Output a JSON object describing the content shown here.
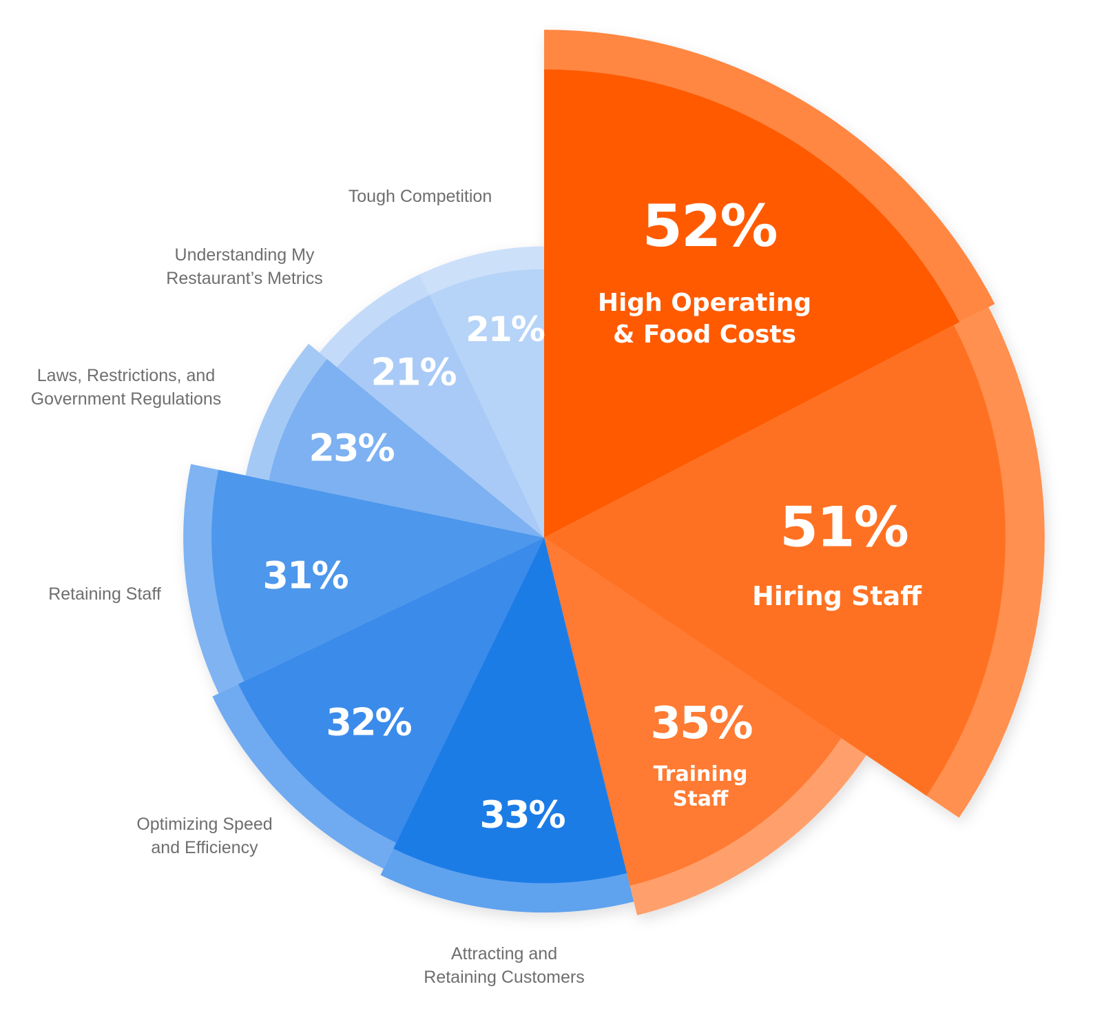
{
  "chart_data": {
    "type": "polar-area",
    "title": "",
    "start_angle": "top, clockwise",
    "categories": [
      "High Operating & Food Costs",
      "Hiring Staff",
      "Training Staff",
      "Attracting and Retaining Customers",
      "Optimizing Speed and Efficiency",
      "Retaining Staff",
      "Laws, Restrictions, and Government Regulations",
      "Understanding My Restaurant's Metrics",
      "Tough Competition"
    ],
    "values": [
      52,
      51,
      35,
      33,
      32,
      31,
      23,
      21,
      21
    ],
    "value_labels": [
      "52%",
      "51%",
      "35%",
      "33%",
      "32%",
      "31%",
      "23%",
      "21%",
      "21%"
    ],
    "display_labels": [
      [
        "High Operating",
        "& Food Costs"
      ],
      [
        "Hiring Staff"
      ],
      [
        "Training",
        "Staff"
      ],
      [
        "Attracting and",
        "Retaining Customers"
      ],
      [
        "Optimizing Speed",
        "and Efficiency"
      ],
      [
        "Retaining Staff"
      ],
      [
        "Laws, Restrictions, and",
        "Government Regulations"
      ],
      [
        "Understanding My",
        "Restaurant’s Metrics"
      ],
      [
        "Tough Competition"
      ]
    ],
    "colors": [
      "#FF5A00",
      "#FF7122",
      "#FF7A32",
      "#1E7BE6",
      "#3A8BEB",
      "#4D97EC",
      "#7DB1F1",
      "#A9CAF6",
      "#B6D3F8"
    ],
    "band_colors": [
      "#FF8743",
      "#FF9050",
      "#FFA06C",
      "#5EA2EE",
      "#6FAAF0",
      "#7FB3F2",
      "#A5C9F5",
      "#C3DBF9",
      "#CCE0FA"
    ],
    "legend": "none",
    "grid": false
  }
}
